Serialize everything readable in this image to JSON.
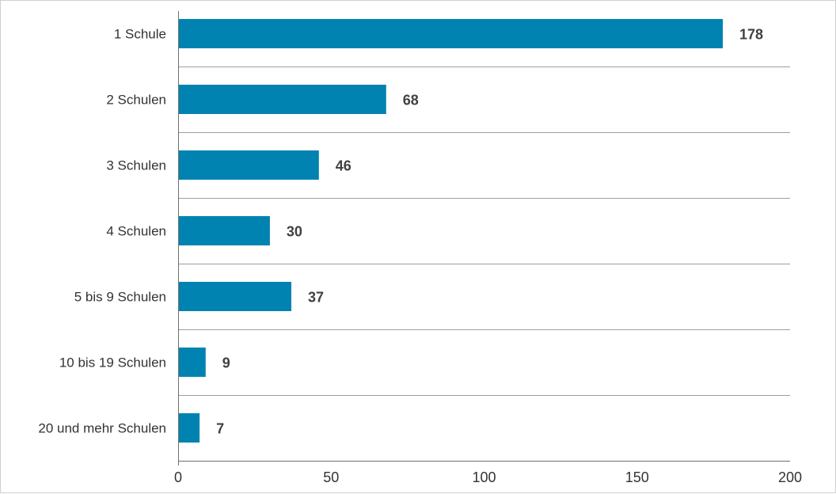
{
  "chart_data": {
    "type": "bar",
    "orientation": "horizontal",
    "categories": [
      "1 Schule",
      "2 Schulen",
      "3 Schulen",
      "4 Schulen",
      "5 bis 9 Schulen",
      "10 bis 19 Schulen",
      "20 und mehr Schulen"
    ],
    "values": [
      178,
      68,
      46,
      30,
      37,
      9,
      7
    ],
    "value_labels": [
      "178",
      "68",
      "46",
      "30",
      "37",
      "9",
      "7"
    ],
    "xlim": [
      0,
      200
    ],
    "x_ticks": [
      "0",
      "50",
      "100",
      "150",
      "200"
    ],
    "title": "",
    "xlabel": "",
    "ylabel": "",
    "grid": "horizontal separators between categories",
    "legend": "none",
    "colors": {
      "bar": "#0083B0",
      "grid": "#9e9e9e",
      "axis": "#6f6f6f"
    }
  }
}
